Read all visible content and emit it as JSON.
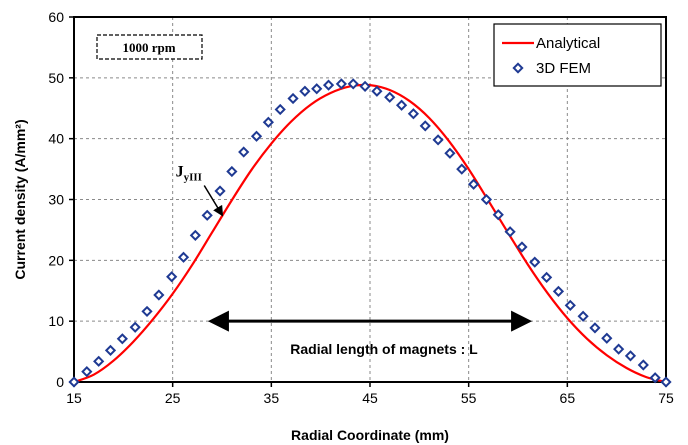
{
  "chart_data": {
    "type": "line",
    "title": "",
    "xlabel": "Radial Coordinate  (mm)",
    "ylabel": "Current  density  (A/mm²)",
    "xlim": [
      15,
      75
    ],
    "ylim": [
      0,
      60
    ],
    "x_ticks": [
      15,
      25,
      35,
      45,
      55,
      65,
      75
    ],
    "y_ticks": [
      0,
      10,
      20,
      30,
      40,
      50,
      60
    ],
    "x_tick_labels": [
      "15",
      "25",
      "35",
      "45",
      "55",
      "65",
      "75"
    ],
    "y_tick_labels": [
      "0",
      "10",
      "20",
      "30",
      "40",
      "50",
      "60"
    ],
    "grid": "dashed",
    "legend_position": "top-right",
    "series": [
      {
        "name": "Analytical",
        "kind": "line",
        "color": "#ff0000",
        "x": [
          15,
          17,
          19,
          21,
          23,
          25,
          27,
          29,
          31,
          33,
          35,
          37,
          39,
          41,
          43,
          45,
          47,
          49,
          51,
          53,
          55,
          57,
          59,
          61,
          63,
          65,
          67,
          69,
          71,
          73,
          75
        ],
        "y": [
          0,
          1.2,
          3.5,
          6.6,
          10.3,
          14.5,
          19.3,
          24.6,
          29.9,
          34.9,
          39.2,
          42.8,
          45.6,
          47.5,
          48.6,
          48.8,
          48.0,
          46.2,
          43.4,
          39.6,
          35.0,
          29.8,
          24.5,
          19.3,
          14.6,
          10.5,
          7.1,
          4.4,
          2.3,
          0.8,
          0
        ]
      },
      {
        "name": "3D FEM",
        "kind": "marker",
        "color": "#1f3a93",
        "x": [
          15,
          16.3,
          17.5,
          18.7,
          19.9,
          21.2,
          22.4,
          23.6,
          24.9,
          26.1,
          27.3,
          28.5,
          29.8,
          31.0,
          32.2,
          33.5,
          34.7,
          35.9,
          37.2,
          38.4,
          39.6,
          40.8,
          42.1,
          43.3,
          44.5,
          45.7,
          47.0,
          48.2,
          49.4,
          50.6,
          51.9,
          53.1,
          54.3,
          55.5,
          56.8,
          58.0,
          59.2,
          60.4,
          61.7,
          62.9,
          64.1,
          65.3,
          66.6,
          67.8,
          69.0,
          70.2,
          71.4,
          72.7,
          73.9,
          75
        ],
        "y": [
          0,
          1.7,
          3.4,
          5.2,
          7.1,
          9.0,
          11.6,
          14.3,
          17.3,
          20.5,
          24.1,
          27.4,
          31.4,
          34.6,
          37.8,
          40.4,
          42.7,
          44.8,
          46.6,
          47.8,
          48.2,
          48.8,
          49.0,
          49.0,
          48.6,
          47.8,
          46.8,
          45.5,
          44.1,
          42.1,
          39.8,
          37.6,
          35.0,
          32.5,
          30.0,
          27.5,
          24.7,
          22.2,
          19.7,
          17.2,
          14.9,
          12.6,
          10.8,
          8.9,
          7.2,
          5.4,
          4.3,
          2.8,
          0.7,
          0
        ]
      }
    ],
    "annotations": {
      "speed_box": "1000 rpm",
      "jy_label_main": "J",
      "jy_label_sub": "yIII",
      "radial_length_label": "Radial length  of  magnets : L",
      "radial_length_arrow_x": [
        29,
        61
      ],
      "radial_length_arrow_y": 10,
      "jy_arrow_from": [
        28.2,
        32.3
      ],
      "jy_arrow_to": [
        30.0,
        27.5
      ],
      "jy_label_at": [
        25.3,
        33.8
      ]
    }
  }
}
